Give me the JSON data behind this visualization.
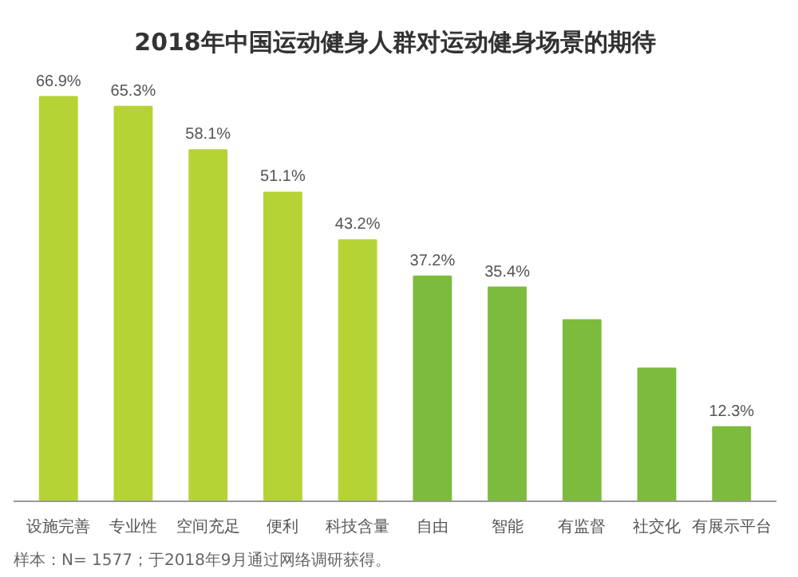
{
  "chart_data": {
    "type": "bar",
    "title": "2018年中国运动健身人群对运动健身场景的期待",
    "categories": [
      "设施完善",
      "专业性",
      "空间充足",
      "便利",
      "科技含量",
      "自由",
      "智能",
      "有监督",
      "社交化",
      "有展示平台"
    ],
    "values": [
      66.9,
      65.3,
      58.1,
      51.1,
      43.2,
      37.2,
      35.4,
      30,
      22,
      12.3
    ],
    "value_labels": [
      "66.9%",
      "65.3%",
      "58.1%",
      "51.1%",
      "43.2%",
      "37.2%",
      "35.4%",
      null,
      null,
      "12.3%"
    ],
    "colors": [
      "#b5d334",
      "#b5d334",
      "#b5d334",
      "#b5d334",
      "#b5d334",
      "#7dbb3c",
      "#7dbb3c",
      "#7dbb3c",
      "#7dbb3c",
      "#7dbb3c"
    ],
    "grid": false,
    "annotations": [
      "样本：N= 1577；于2018年9月通过网络调研获得。"
    ]
  }
}
